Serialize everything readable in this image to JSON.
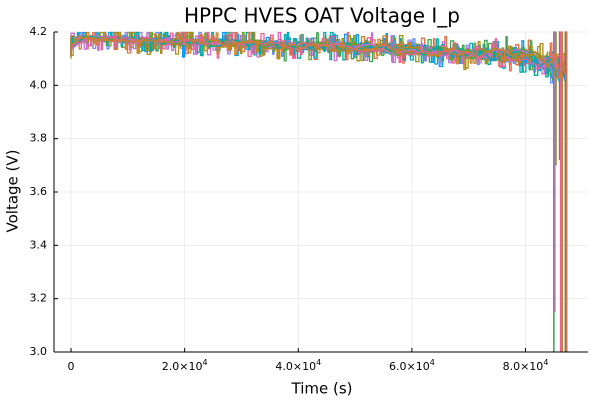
{
  "chart_data": {
    "type": "line",
    "title": "HPPC HVES OAT Voltage I_p",
    "xlabel": "Time (s)",
    "ylabel": "Voltage (V)",
    "xlim": [
      -3000,
      91000
    ],
    "ylim": [
      3.0,
      4.2
    ],
    "grid": true,
    "legend": "none",
    "x_ticks": [
      {
        "value": 0,
        "base": "0",
        "exp": ""
      },
      {
        "value": 20000,
        "base": "2.0×10",
        "exp": "4"
      },
      {
        "value": 40000,
        "base": "4.0×10",
        "exp": "4"
      },
      {
        "value": 60000,
        "base": "6.0×10",
        "exp": "4"
      },
      {
        "value": 80000,
        "base": "8.0×10",
        "exp": "4"
      }
    ],
    "y_ticks": [
      "3.0",
      "3.2",
      "3.4",
      "3.6",
      "3.8",
      "4.0",
      "4.2"
    ],
    "series_count": 24,
    "series_colors": [
      "#009af9",
      "#e26f46",
      "#3ea44e",
      "#c271d2",
      "#ac8d18",
      "#00a9ad",
      "#ed5e93",
      "#c68225",
      "#00a98d",
      "#8e971e",
      "#00a8cb",
      "#9b7fe9",
      "#618df6",
      "#f16c42",
      "#dd64b5",
      "#6b9f34"
    ],
    "envelope": {
      "time_s": [
        0,
        2000,
        5000,
        10000,
        20000,
        30000,
        40000,
        50000,
        60000,
        70000,
        80000,
        85000
      ],
      "upper_v": [
        4.19,
        4.19,
        4.19,
        4.19,
        4.18,
        4.18,
        4.17,
        4.17,
        4.16,
        4.15,
        4.15,
        4.14
      ],
      "lower_v": [
        4.1,
        4.16,
        4.15,
        4.14,
        4.13,
        4.12,
        4.11,
        4.1,
        4.09,
        4.07,
        4.04,
        4.0
      ]
    },
    "end_time_s": [
      85000,
      85300,
      85600,
      86000,
      86300,
      86700,
      87000,
      87200,
      87500
    ],
    "end_drop_v": [
      3.0,
      3.15,
      3.7,
      3.72,
      3.0,
      3.0,
      3.0,
      3.0,
      3.0
    ]
  }
}
